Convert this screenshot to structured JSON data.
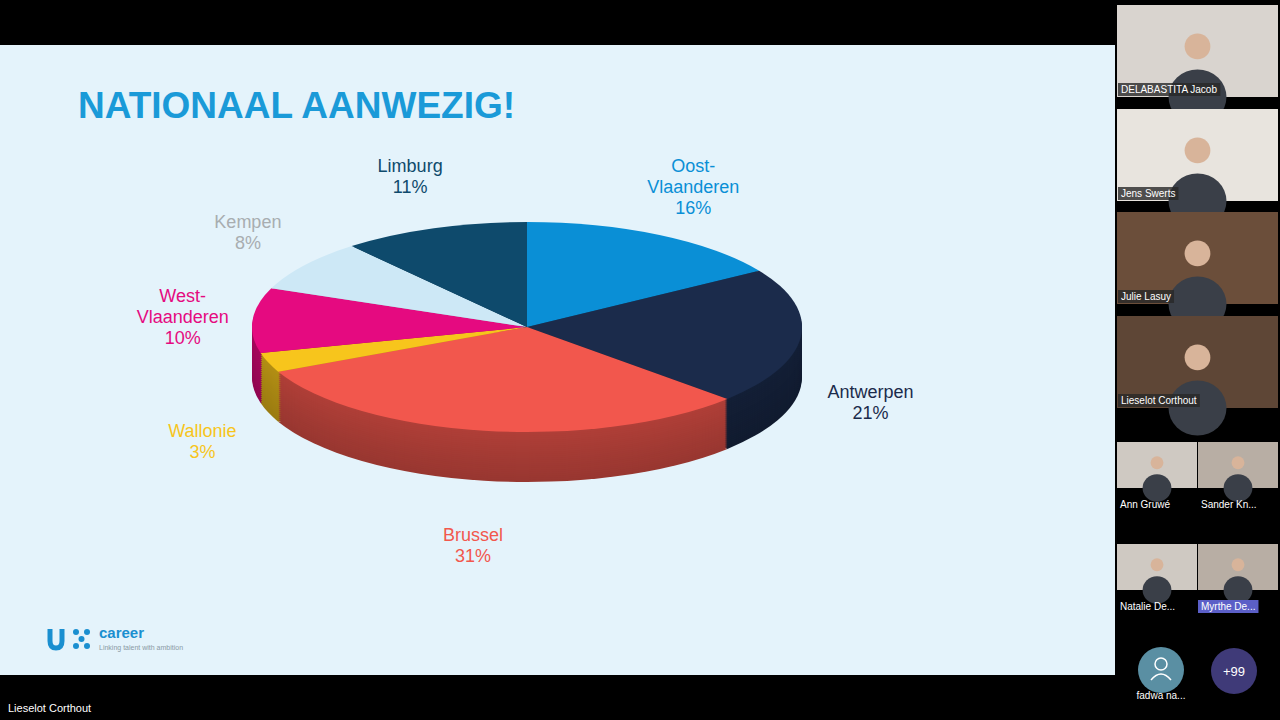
{
  "chart_data": {
    "type": "pie",
    "title": "NATIONAAL AANWEZIG!",
    "categories": [
      "Oost-Vlaanderen",
      "Antwerpen",
      "Brussel",
      "Wallonie",
      "West-Vlaanderen",
      "Kempen",
      "Limburg"
    ],
    "values": [
      16,
      21,
      31,
      3,
      10,
      8,
      11
    ],
    "value_labels": [
      "16%",
      "21%",
      "31%",
      "3%",
      "10%",
      "8%",
      "11%"
    ],
    "colors": [
      "#0a8fd6",
      "#1b2b4b",
      "#f2574d",
      "#f7c51c",
      "#e50a80",
      "#cde8f6",
      "#0e4a6c"
    ],
    "data_labels": true
  },
  "slide": {
    "brand": "career",
    "tagline": "Linking talent with ambition"
  },
  "meeting": {
    "participants": [
      "DELABASTITA Jacob",
      "Jens Swerts",
      "Julie Lasuy",
      "Lieselot Corthout",
      "Ann Gruwé",
      "Sander Kn...",
      "Natalie De...",
      "Myrthe De...",
      "fadwa na..."
    ],
    "overflow": "+99",
    "speaker": "Lieselot Corthout"
  }
}
